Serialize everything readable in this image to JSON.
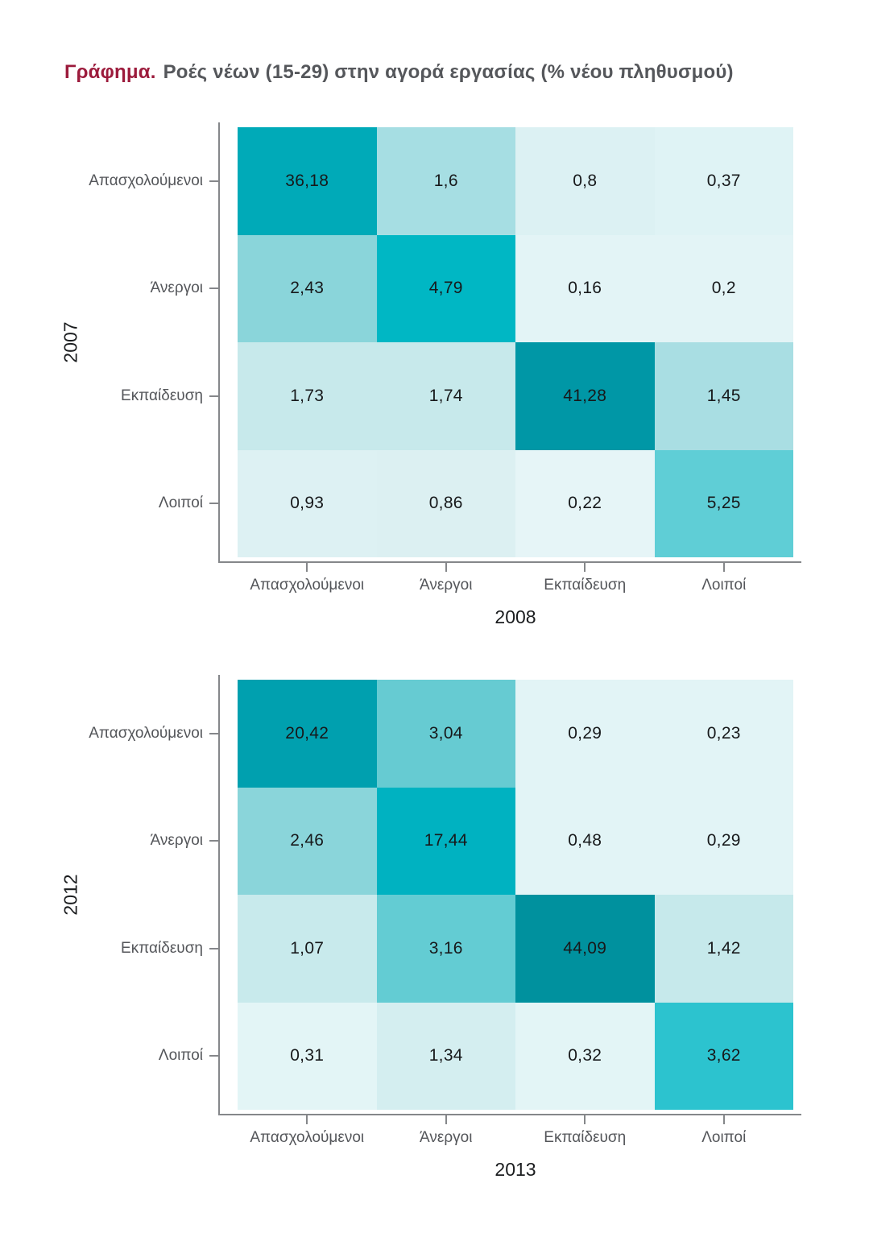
{
  "title": {
    "prefix": "Γράφημα.",
    "text": "Ροές νέων (15-29) στην αγορά εργασίας (% νέου πληθυσμού)"
  },
  "colors": {
    "title_prefix": "#9c1b3c",
    "title_text": "#55575b",
    "axis_line": "#85878a",
    "category_label": "#54565a",
    "year_label": "#1b1d1f",
    "cell_text": "#17191b"
  },
  "chart_data": [
    {
      "type": "heatmap",
      "ylabel": "2007",
      "xlabel": "2008",
      "row_labels": [
        "Απασχολούμενοι",
        "Άνεργοι",
        "Εκπαίδευση",
        "Λοιποί"
      ],
      "col_labels": [
        "Απασχολούμενοι",
        "Άνεργοι",
        "Εκπαίδευση",
        "Λοιποί"
      ],
      "values": [
        [
          36.18,
          1.6,
          0.8,
          0.37
        ],
        [
          2.43,
          4.79,
          0.16,
          0.2
        ],
        [
          1.73,
          1.74,
          41.28,
          1.45
        ],
        [
          0.93,
          0.86,
          0.22,
          5.25
        ]
      ],
      "display": [
        [
          "36,18",
          "1,6",
          "0,8",
          "0,37"
        ],
        [
          "2,43",
          "4,79",
          "0,16",
          "0,2"
        ],
        [
          "1,73",
          "1,74",
          "41,28",
          "1,45"
        ],
        [
          "0,93",
          "0,86",
          "0,22",
          "5,25"
        ]
      ],
      "cell_colors": [
        [
          "#00aab8",
          "#a6dee3",
          "#dcf1f3",
          "#dff3f5"
        ],
        [
          "#8ad5da",
          "#00b7c4",
          "#e3f4f6",
          "#e3f4f6"
        ],
        [
          "#c7e9eb",
          "#c7e9eb",
          "#0097a6",
          "#a9dee3"
        ],
        [
          "#ddf1f3",
          "#dcf0f2",
          "#e6f5f7",
          "#5fced6"
        ]
      ]
    },
    {
      "type": "heatmap",
      "ylabel": "2012",
      "xlabel": "2013",
      "row_labels": [
        "Απασχολούμενοι",
        "Άνεργοι",
        "Εκπαίδευση",
        "Λοιποί"
      ],
      "col_labels": [
        "Απασχολούμενοι",
        "Άνεργοι",
        "Εκπαίδευση",
        "Λοιποί"
      ],
      "values": [
        [
          20.42,
          3.04,
          0.29,
          0.23
        ],
        [
          2.46,
          17.44,
          0.48,
          0.29
        ],
        [
          1.07,
          3.16,
          44.09,
          1.42
        ],
        [
          0.31,
          1.34,
          0.32,
          3.62
        ]
      ],
      "display": [
        [
          "20,42",
          "3,04",
          "0,29",
          "0,23"
        ],
        [
          "2,46",
          "17,44",
          "0,48",
          "0,29"
        ],
        [
          "1,07",
          "3,16",
          "44,09",
          "1,42"
        ],
        [
          "0,31",
          "1,34",
          "0,32",
          "3,62"
        ]
      ],
      "cell_colors": [
        [
          "#00a0af",
          "#66cbd2",
          "#e2f4f6",
          "#e2f4f6"
        ],
        [
          "#8ad5da",
          "#00b2c1",
          "#e2f4f6",
          "#e2f4f6"
        ],
        [
          "#c8eaec",
          "#63ccd3",
          "#00919e",
          "#c6e9eb"
        ],
        [
          "#e3f5f6",
          "#d4eef0",
          "#e3f5f6",
          "#2cc3cf"
        ]
      ]
    }
  ]
}
